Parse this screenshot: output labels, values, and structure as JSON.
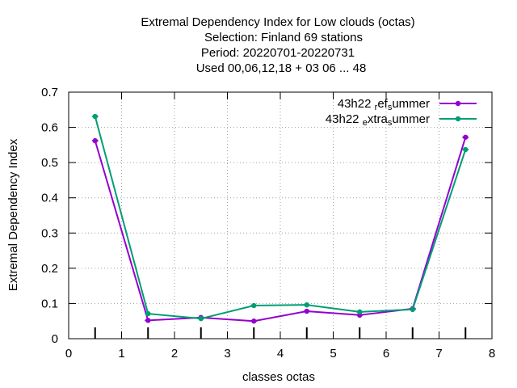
{
  "chart_data": {
    "type": "line",
    "title_lines": [
      "Extremal Dependency Index  for Low clouds (octas)",
      "Selection: Finland     69 stations",
      "Period: 20220701-20220731",
      "Used  00,06,12,18  + 03 06 ... 48"
    ],
    "xlabel": "classes octas",
    "ylabel": "Extremal Dependency Index",
    "xlim": [
      0,
      8
    ],
    "ylim": [
      0,
      0.7
    ],
    "x_ticks": [
      "0",
      "1",
      "2",
      "3",
      "4",
      "5",
      "6",
      "7",
      "8"
    ],
    "y_ticks": [
      "0",
      "0.1",
      "0.2",
      "0.3",
      "0.4",
      "0.5",
      "0.6",
      "0.7"
    ],
    "grid": true,
    "legend_position": "top-right",
    "x": [
      0.5,
      1.5,
      2.5,
      3.5,
      4.5,
      5.5,
      6.5,
      7.5
    ],
    "series": [
      {
        "legend_main": "43h22",
        "legend_parts": [
          [
            "r",
            "sub"
          ],
          [
            "ef",
            "normal"
          ],
          [
            "s",
            "sub"
          ],
          [
            "ummer",
            "normal"
          ]
        ],
        "color": "#9400d3",
        "values": [
          0.562,
          0.052,
          0.06,
          0.05,
          0.078,
          0.067,
          0.085,
          0.572
        ]
      },
      {
        "legend_main": "43h22",
        "legend_parts": [
          [
            "e",
            "sub"
          ],
          [
            "xtra",
            "normal"
          ],
          [
            "s",
            "sub"
          ],
          [
            "ummer",
            "normal"
          ]
        ],
        "color": "#009e73",
        "values": [
          0.631,
          0.071,
          0.057,
          0.094,
          0.096,
          0.076,
          0.083,
          0.537
        ]
      }
    ]
  }
}
